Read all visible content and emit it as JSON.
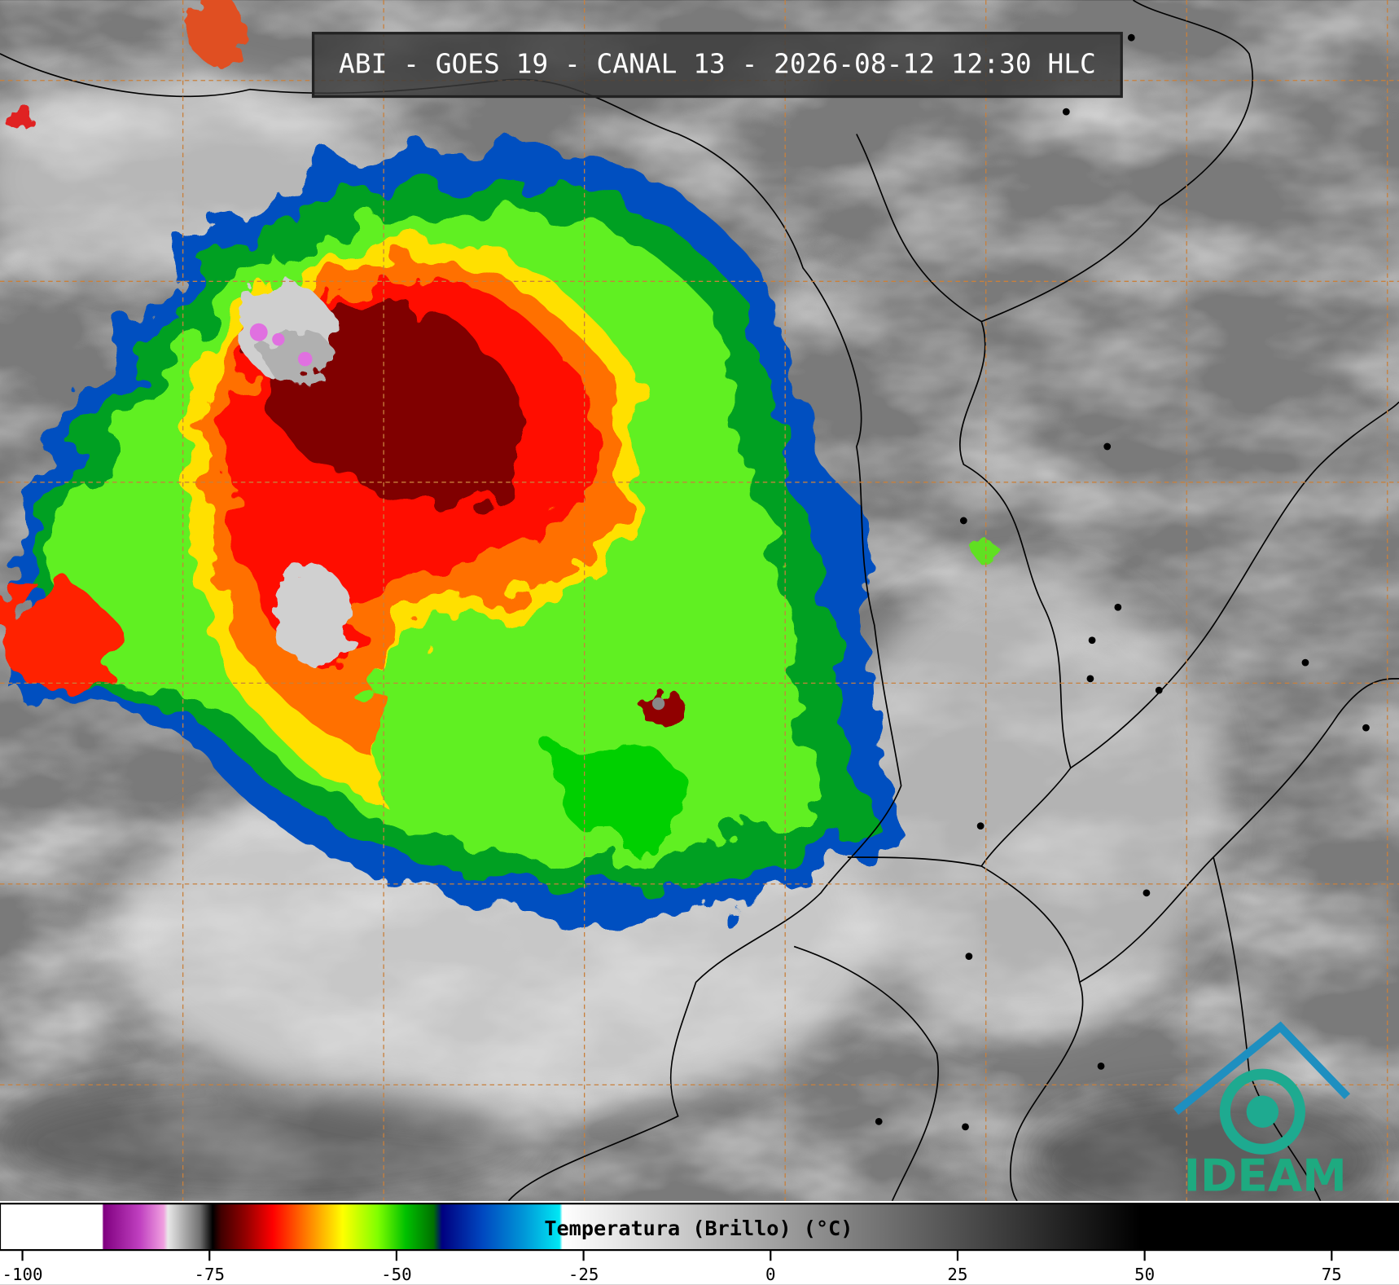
{
  "title": "ABI - GOES 19 - CANAL 13 - 2026-08-12 12:30 HLC",
  "colorbar": {
    "label": "Temperatura (Brillo) (°C)",
    "range": [
      -103,
      84
    ],
    "ticks": [
      -100,
      -75,
      -50,
      -25,
      0,
      25,
      50,
      75
    ]
  },
  "logo": "IDEAM"
}
